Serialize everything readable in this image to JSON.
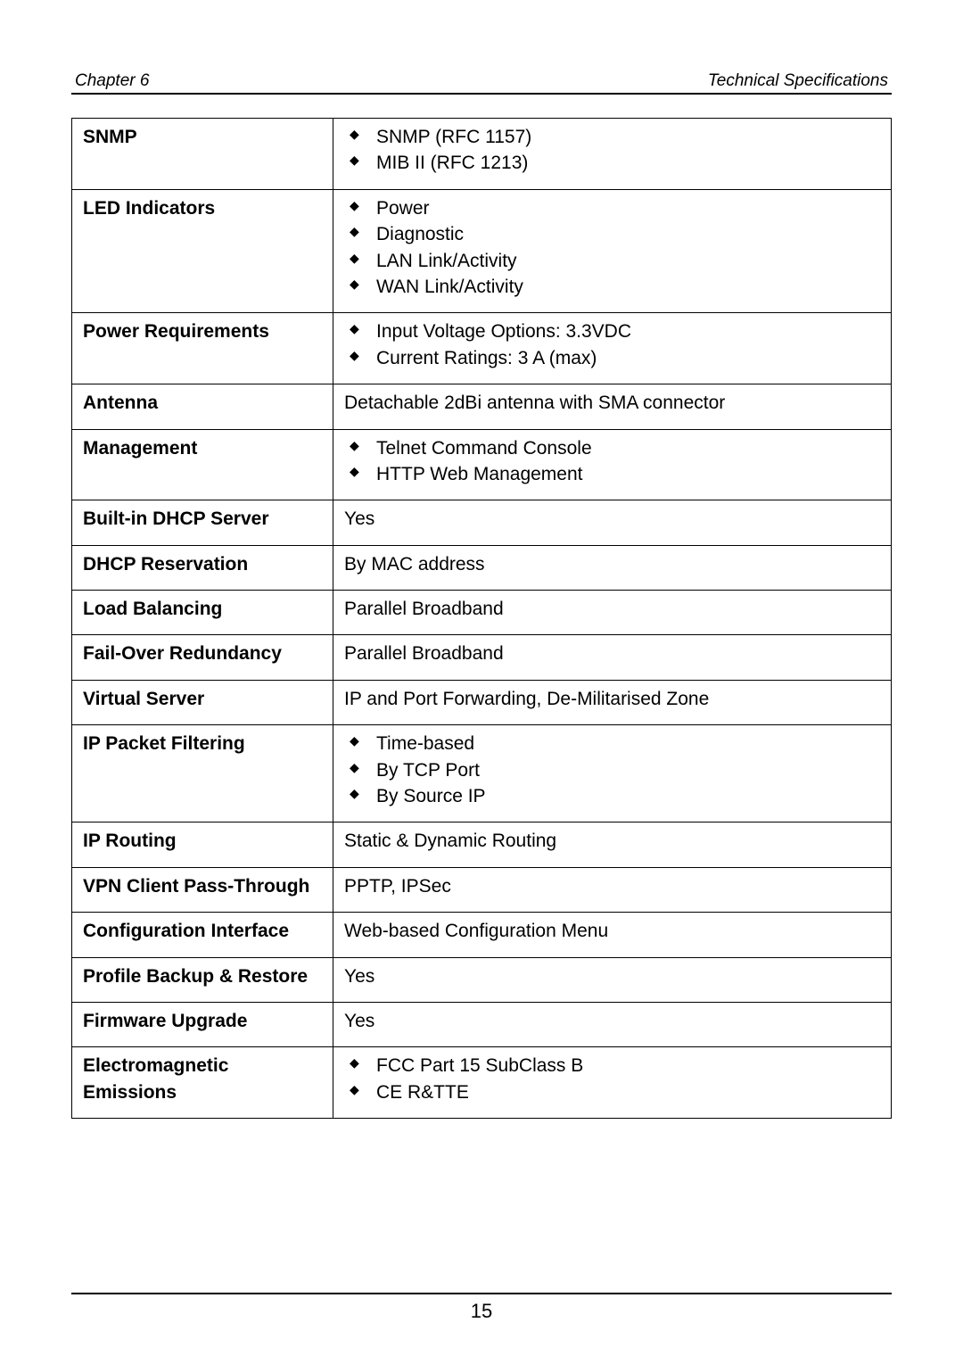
{
  "header": {
    "left": "Chapter 6",
    "right": "Technical Specifications"
  },
  "footer": {
    "page_number": "15"
  },
  "table": {
    "rows": [
      {
        "label": "SNMP",
        "type": "list",
        "items": [
          "SNMP (RFC 1157)",
          "MIB II (RFC 1213)"
        ]
      },
      {
        "label": "LED Indicators",
        "type": "list",
        "items": [
          "Power",
          "Diagnostic",
          "LAN Link/Activity",
          "WAN Link/Activity"
        ]
      },
      {
        "label": "Power Requirements",
        "type": "list",
        "items": [
          "Input Voltage Options: 3.3VDC",
          "Current Ratings: 3 A (max)"
        ]
      },
      {
        "label": "Antenna",
        "type": "text",
        "value": "Detachable 2dBi antenna with SMA connector"
      },
      {
        "label": "Management",
        "type": "list",
        "items": [
          "Telnet Command Console",
          "HTTP Web Management"
        ]
      },
      {
        "label": "Built-in DHCP Server",
        "type": "text",
        "value": "Yes"
      },
      {
        "label": "DHCP Reservation",
        "type": "text",
        "value": "By MAC address"
      },
      {
        "label": "Load Balancing",
        "type": "text",
        "value": "Parallel Broadband"
      },
      {
        "label": "Fail-Over Redundancy",
        "type": "text",
        "value": "Parallel Broadband"
      },
      {
        "label": "Virtual Server",
        "type": "text",
        "value": "IP and Port Forwarding, De-Militarised Zone"
      },
      {
        "label": "IP Packet Filtering",
        "type": "list",
        "items": [
          "Time-based",
          "By TCP Port",
          "By Source IP"
        ]
      },
      {
        "label": "IP Routing",
        "type": "text",
        "value": "Static & Dynamic Routing"
      },
      {
        "label": "VPN Client Pass-Through",
        "type": "text",
        "value": "PPTP, IPSec"
      },
      {
        "label": "Configuration Interface",
        "type": "text",
        "value": "Web-based Configuration Menu"
      },
      {
        "label": "Profile Backup & Restore",
        "type": "text",
        "value": "Yes"
      },
      {
        "label": "Firmware Upgrade",
        "type": "text",
        "value": "Yes"
      },
      {
        "label": "Electromagnetic Emissions",
        "type": "list",
        "items": [
          "FCC Part 15 SubClass B",
          "CE R&TTE"
        ]
      }
    ]
  }
}
